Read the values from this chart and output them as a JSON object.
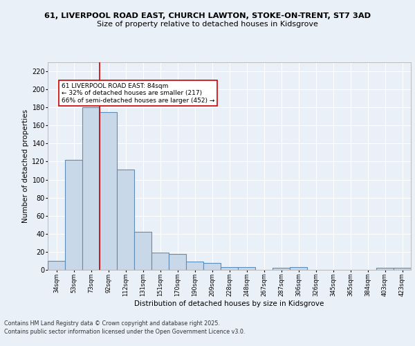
{
  "title_line1": "61, LIVERPOOL ROAD EAST, CHURCH LAWTON, STOKE-ON-TRENT, ST7 3AD",
  "title_line2": "Size of property relative to detached houses in Kidsgrove",
  "xlabel": "Distribution of detached houses by size in Kidsgrove",
  "ylabel": "Number of detached properties",
  "categories": [
    "34sqm",
    "53sqm",
    "73sqm",
    "92sqm",
    "112sqm",
    "131sqm",
    "151sqm",
    "170sqm",
    "190sqm",
    "209sqm",
    "228sqm",
    "248sqm",
    "267sqm",
    "287sqm",
    "306sqm",
    "326sqm",
    "345sqm",
    "365sqm",
    "384sqm",
    "403sqm",
    "423sqm"
  ],
  "values": [
    10,
    122,
    180,
    175,
    111,
    42,
    19,
    18,
    9,
    8,
    3,
    3,
    0,
    2,
    3,
    0,
    0,
    0,
    0,
    2,
    2
  ],
  "bar_color": "#c8d8e8",
  "bar_edge_color": "#5b8db8",
  "bar_edge_width": 0.8,
  "vline_x_index": 2.5,
  "vline_color": "#cc0000",
  "annotation_text": "61 LIVERPOOL ROAD EAST: 84sqm\n← 32% of detached houses are smaller (217)\n66% of semi-detached houses are larger (452) →",
  "annotation_box_color": "#ffffff",
  "annotation_box_edge": "#cc0000",
  "ylim": [
    0,
    230
  ],
  "yticks": [
    0,
    20,
    40,
    60,
    80,
    100,
    120,
    140,
    160,
    180,
    200,
    220
  ],
  "background_color": "#eaf0f8",
  "plot_background": "#eaf0f8",
  "grid_color": "#ffffff",
  "footer_line1": "Contains HM Land Registry data © Crown copyright and database right 2025.",
  "footer_line2": "Contains public sector information licensed under the Open Government Licence v3.0."
}
